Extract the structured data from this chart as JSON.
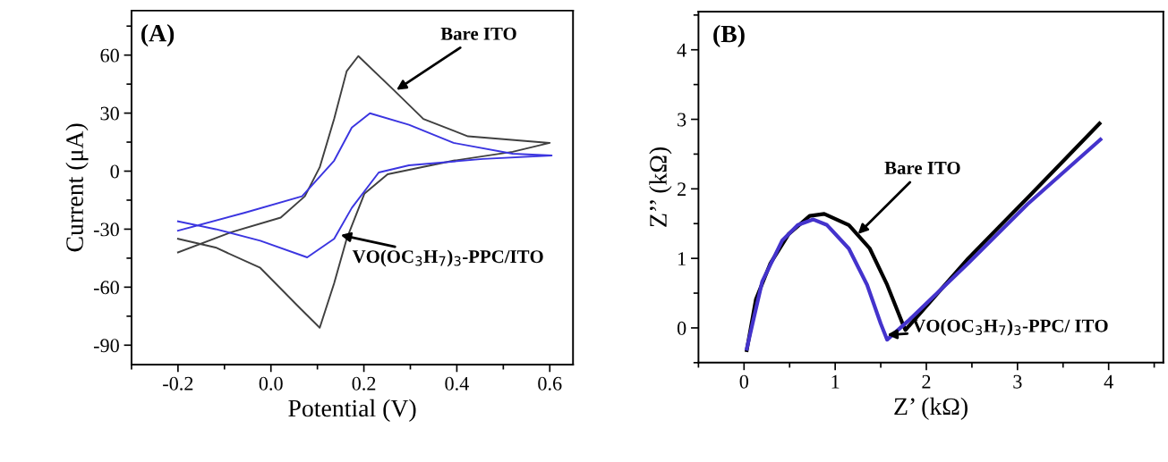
{
  "chart_data": [
    {
      "type": "line",
      "xlabel": "Potential (V)",
      "ylabel": "Current (μA)",
      "xlim": [
        -0.3,
        0.65
      ],
      "ylim": [
        -100,
        83
      ],
      "xticks": [
        -0.2,
        {
          "value": 0,
          "label": "0.0"
        },
        0.2,
        0.4,
        0.6
      ],
      "yticks": [
        60,
        30,
        0,
        -30,
        -60,
        -90
      ],
      "grid": false,
      "annotations": [
        "(A)",
        {
          "text": "Bare ITO",
          "x": 0.27,
          "y": 42
        },
        {
          "text": "VO(OC$_{3}$H$_{7}$)$_{3}$-PPC/ITO",
          "x": 0.15,
          "y": -33
        }
      ],
      "series": [
        {
          "color": "#404040",
          "x": [
            -0.2,
            -0.087,
            0.021,
            0.073,
            0.105,
            0.136,
            0.163,
            0.188,
            0.264,
            0.328,
            0.424,
            0.6,
            0.52,
            0.393,
            0.251,
            0.201,
            0.163,
            0.136,
            0.105,
            0.059,
            -0.023,
            -0.119,
            -0.2
          ],
          "values": [
            -42,
            -31.7,
            -24,
            -13,
            2,
            27,
            51.7,
            59.5,
            42,
            27,
            18,
            14.6,
            10,
            5.4,
            -1.6,
            -11.7,
            -35,
            -58,
            -81,
            -70,
            -50,
            -39.5,
            -35
          ]
        },
        {
          "color": "#3b35e0",
          "x": [
            -0.2,
            -0.056,
            0.067,
            0.136,
            0.174,
            0.213,
            0.297,
            0.393,
            0.52,
            0.604,
            0.456,
            0.297,
            0.232,
            0.174,
            0.136,
            0.078,
            -0.023,
            -0.119,
            -0.2
          ],
          "values": [
            -30.8,
            -21.5,
            -13,
            5.4,
            22.5,
            29.9,
            24,
            14.6,
            9,
            8.1,
            6.3,
            3,
            -0.7,
            -19,
            -35,
            -44.6,
            -36,
            -30,
            -26
          ]
        }
      ]
    },
    {
      "type": "line",
      "xlabel": "Z’ (kΩ)",
      "ylabel": "Z’’ (kΩ)",
      "xlim": [
        -0.5,
        4.6
      ],
      "ylim": [
        -0.5,
        4.55
      ],
      "xticks": [
        0,
        1,
        2,
        3,
        4
      ],
      "yticks": [
        0,
        1,
        2,
        3,
        4
      ],
      "grid": false,
      "annotations": [
        "(B)",
        {
          "text": "Bare ITO",
          "x": 1.25,
          "y": 1.35
        },
        {
          "text": "VO(OC$_{3}$H$_{7}$)$_{3}$-PPC/ ITO",
          "x": 1.57,
          "y": -0.1
        }
      ],
      "series": [
        {
          "color": "#000000",
          "x": [
            0.03,
            0.13,
            0.29,
            0.49,
            0.72,
            0.88,
            1.15,
            1.38,
            1.57,
            1.74,
            1.77,
            2.46,
            3.11,
            3.9
          ],
          "values": [
            -0.32,
            0.41,
            0.93,
            1.35,
            1.61,
            1.64,
            1.48,
            1.14,
            0.62,
            0.06,
            -0.03,
            1.0,
            1.87,
            2.94
          ]
        },
        {
          "color": "#4433cc",
          "x": [
            0.03,
            0.2,
            0.42,
            0.59,
            0.76,
            0.91,
            1.15,
            1.35,
            1.5,
            1.57,
            1.8,
            2.46,
            3.11,
            3.91
          ],
          "values": [
            -0.3,
            0.67,
            1.26,
            1.48,
            1.56,
            1.48,
            1.14,
            0.62,
            0.06,
            -0.17,
            0.1,
            0.93,
            1.78,
            2.71
          ]
        }
      ]
    }
  ]
}
